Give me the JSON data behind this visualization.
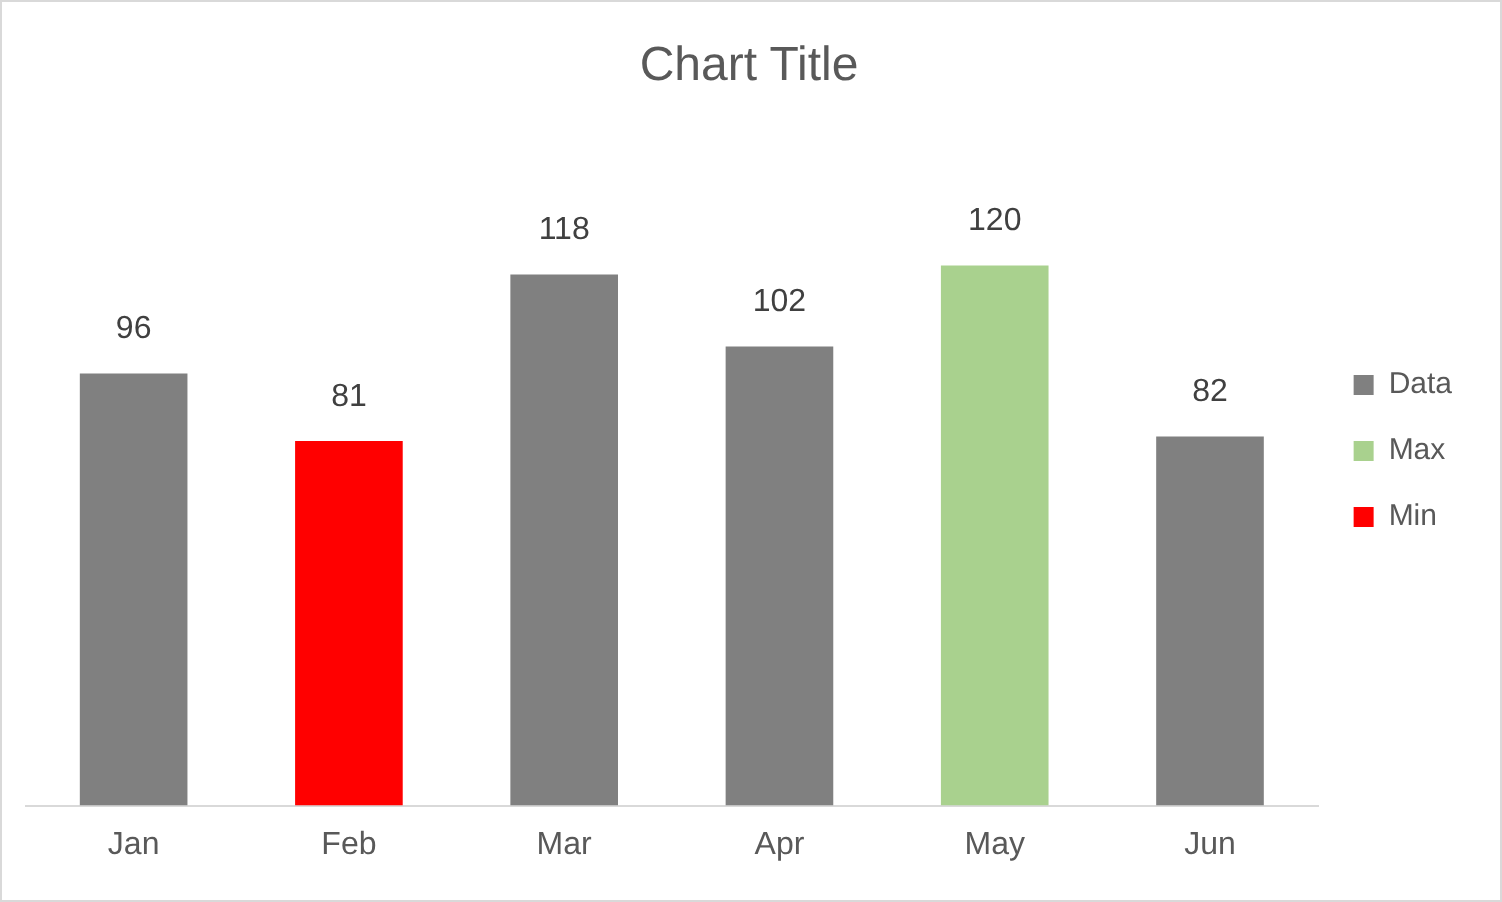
{
  "chart_data": {
    "type": "bar",
    "title": "Chart Title",
    "categories": [
      "Jan",
      "Feb",
      "Mar",
      "Apr",
      "May",
      "Jun"
    ],
    "stacked": true,
    "series": [
      {
        "name": "Data",
        "color": "#808080",
        "values": [
          96,
          null,
          118,
          102,
          null,
          82
        ]
      },
      {
        "name": "Max",
        "color": "#a9d18e",
        "values": [
          null,
          null,
          null,
          null,
          120,
          null
        ]
      },
      {
        "name": "Min",
        "color": "#ff0000",
        "values": [
          null,
          81,
          null,
          null,
          null,
          null
        ]
      }
    ],
    "data_labels": true,
    "grid": false,
    "legend": "right"
  }
}
